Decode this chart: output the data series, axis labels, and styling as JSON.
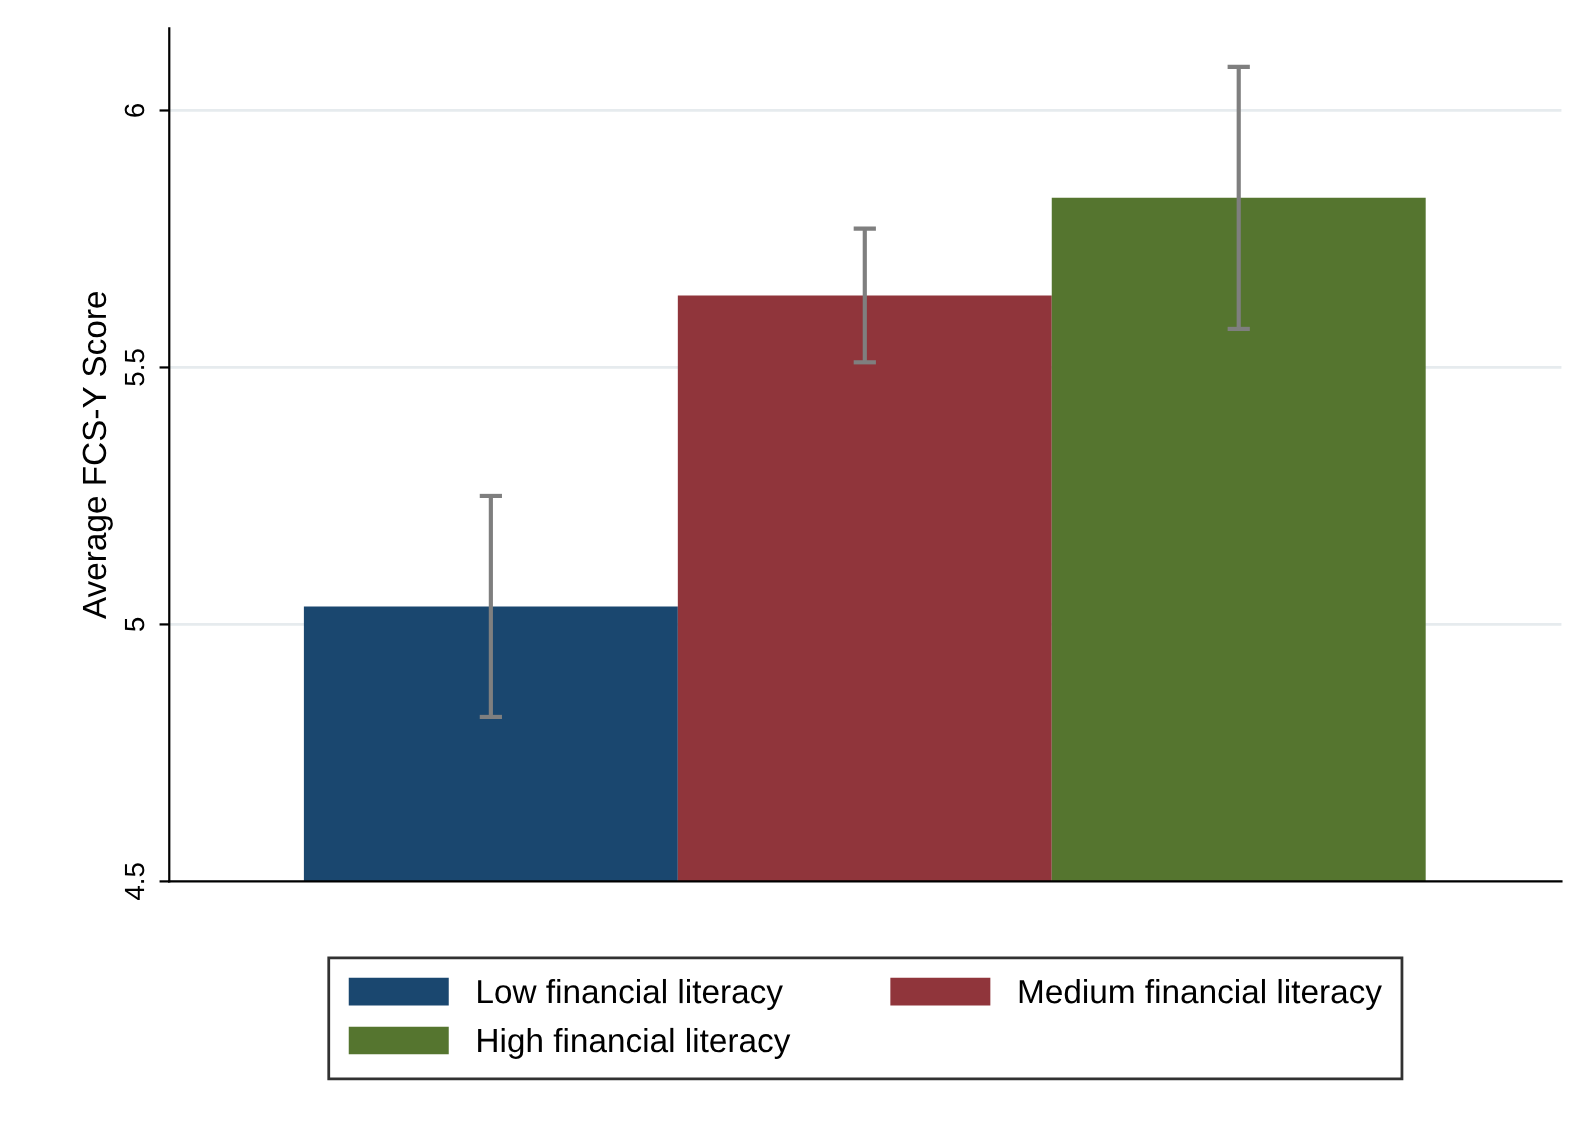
{
  "chart_data": {
    "type": "bar",
    "ylabel": "Average FCS-Y Score",
    "categories": [
      null
    ],
    "series": [
      {
        "name": "Low financial literacy",
        "color": "#1a476f",
        "values": [
          5.035
        ],
        "errors": [
          [
            4.82,
            5.25
          ]
        ]
      },
      {
        "name": "Medium financial literacy",
        "color": "#90353b",
        "values": [
          5.64
        ],
        "errors": [
          [
            5.51,
            5.77
          ]
        ]
      },
      {
        "name": "High financial literacy",
        "color": "#55752f",
        "values": [
          5.83
        ],
        "errors": [
          [
            5.575,
            6.085
          ]
        ]
      }
    ],
    "ylim": [
      4.5,
      6.16
    ],
    "yticks": [
      4.5,
      5,
      5.5,
      6
    ],
    "grid": "y",
    "legend": "bottom"
  }
}
